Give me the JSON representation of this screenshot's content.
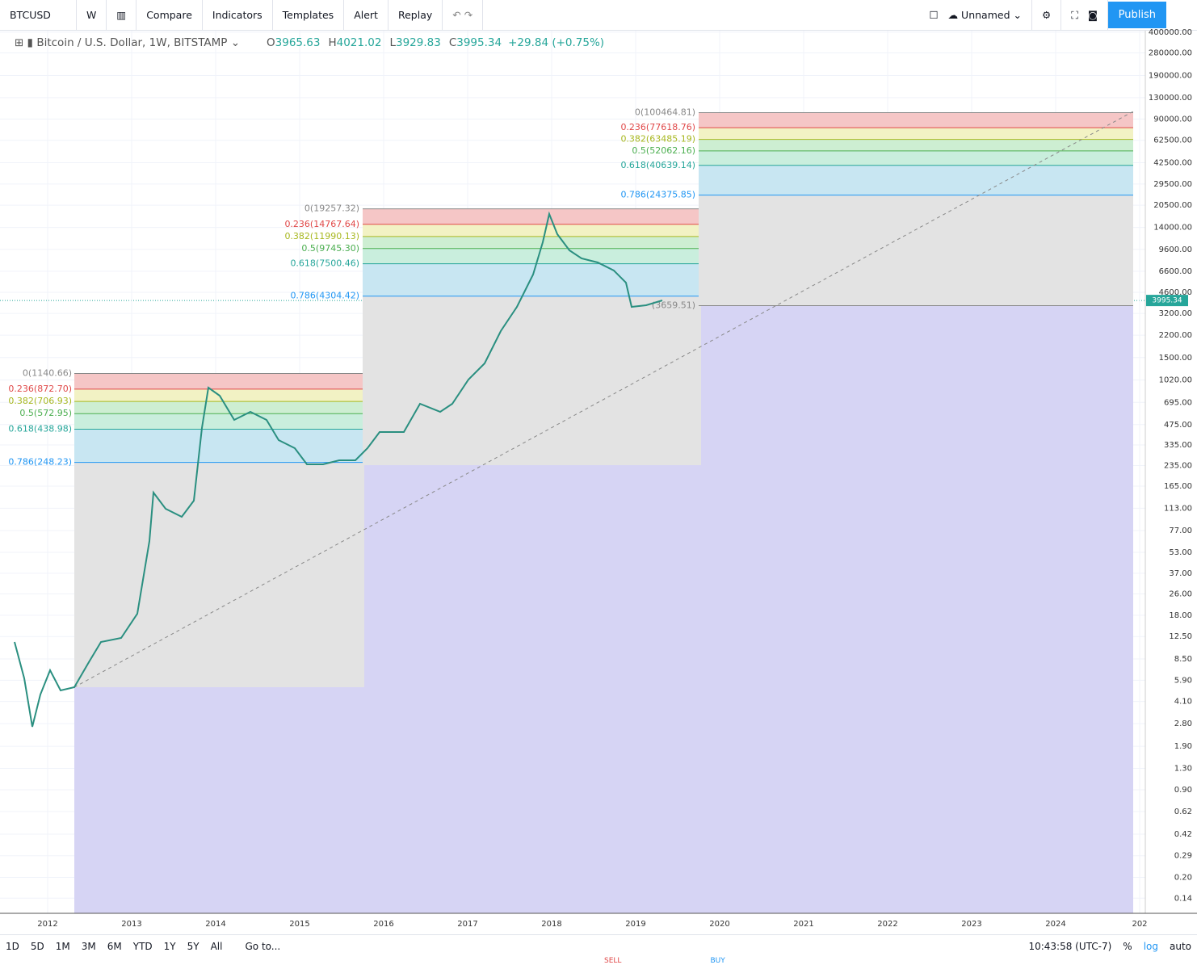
{
  "toolbar": {
    "symbol": "BTCUSD",
    "interval": "W",
    "items": [
      "Compare",
      "Indicators",
      "Templates",
      "Alert",
      "Replay"
    ],
    "layout_name": "Unnamed",
    "publish": "Publish"
  },
  "legend": {
    "title": "Bitcoin / U.S. Dollar, 1W, BITSTAMP",
    "ohlc": [
      {
        "key": "O",
        "value": "3965.63"
      },
      {
        "key": "H",
        "value": "4021.02"
      },
      {
        "key": "L",
        "value": "3929.83"
      },
      {
        "key": "C",
        "value": "3995.34"
      }
    ],
    "change": "+29.84 (+0.75%)"
  },
  "price_scale": {
    "log": true,
    "ylim": [
      0.108,
      410000
    ],
    "yticks": [
      {
        "value": 400000,
        "label": "400000.00"
      },
      {
        "value": 280000,
        "label": "280000.00"
      },
      {
        "value": 190000,
        "label": "190000.00"
      },
      {
        "value": 130000,
        "label": "130000.00"
      },
      {
        "value": 90000,
        "label": "90000.00"
      },
      {
        "value": 62500,
        "label": "62500.00"
      },
      {
        "value": 42500,
        "label": "42500.00"
      },
      {
        "value": 29500,
        "label": "29500.00"
      },
      {
        "value": 20500,
        "label": "20500.00"
      },
      {
        "value": 14000,
        "label": "14000.00"
      },
      {
        "value": 9600,
        "label": "9600.00"
      },
      {
        "value": 6600,
        "label": "6600.00"
      },
      {
        "value": 4600,
        "label": "4600.00"
      },
      {
        "value": 3200,
        "label": "3200.00"
      },
      {
        "value": 2200,
        "label": "2200.00"
      },
      {
        "value": 1500,
        "label": "1500.00"
      },
      {
        "value": 1020,
        "label": "1020.00"
      },
      {
        "value": 695,
        "label": "695.00"
      },
      {
        "value": 475,
        "label": "475.00"
      },
      {
        "value": 335,
        "label": "335.00"
      },
      {
        "value": 235,
        "label": "235.00"
      },
      {
        "value": 165,
        "label": "165.00"
      },
      {
        "value": 113,
        "label": "113.00"
      },
      {
        "value": 77,
        "label": "77.00"
      },
      {
        "value": 53,
        "label": "53.00"
      },
      {
        "value": 37,
        "label": "37.00"
      },
      {
        "value": 26,
        "label": "26.00"
      },
      {
        "value": 18,
        "label": "18.00"
      },
      {
        "value": 12.5,
        "label": "12.50"
      },
      {
        "value": 8.5,
        "label": "8.50"
      },
      {
        "value": 5.9,
        "label": "5.90"
      },
      {
        "value": 4.1,
        "label": "4.10"
      },
      {
        "value": 2.8,
        "label": "2.80"
      },
      {
        "value": 1.9,
        "label": "1.90"
      },
      {
        "value": 1.3,
        "label": "1.30"
      },
      {
        "value": 0.9,
        "label": "0.90"
      },
      {
        "value": 0.62,
        "label": "0.62"
      },
      {
        "value": 0.42,
        "label": "0.42"
      },
      {
        "value": 0.29,
        "label": "0.29"
      },
      {
        "value": 0.2,
        "label": "0.20"
      },
      {
        "value": 0.14,
        "label": "0.14"
      }
    ],
    "last_price": 3995.34
  },
  "time_scale": {
    "labels": [
      "2012",
      "2013",
      "2014",
      "2015",
      "2016",
      "2017",
      "2018",
      "2019",
      "2020",
      "2021",
      "2022",
      "2023",
      "2024",
      "202"
    ]
  },
  "fibs": [
    {
      "levels": [
        {
          "label": "0(1140.66)",
          "price": 1140.66
        },
        {
          "label": "0.236(872.70)",
          "price": 872.7
        },
        {
          "label": "0.382(706.93)",
          "price": 706.93
        },
        {
          "label": "0.5(572.95)",
          "price": 572.95
        },
        {
          "label": "0.618(438.98)",
          "price": 438.98
        },
        {
          "label": "0.786(248.23)",
          "price": 248.23
        }
      ]
    },
    {
      "levels": [
        {
          "label": "0(19257.32)",
          "price": 19257.32
        },
        {
          "label": "0.236(14767.64)",
          "price": 14767.64
        },
        {
          "label": "0.382(11990.13)",
          "price": 11990.13
        },
        {
          "label": "0.5(9745.30)",
          "price": 9745.3
        },
        {
          "label": "0.618(7500.46)",
          "price": 7500.46
        },
        {
          "label": "0.786(4304.42)",
          "price": 4304.42
        }
      ]
    },
    {
      "levels": [
        {
          "label": "0(100464.81)",
          "price": 100464.81
        },
        {
          "label": "0.236(77618.76)",
          "price": 77618.76
        },
        {
          "label": "0.382(63485.19)",
          "price": 63485.19
        },
        {
          "label": "0.5(52062.16)",
          "price": 52062.16
        },
        {
          "label": "0.618(40639.14)",
          "price": 40639.14
        },
        {
          "label": "0.786(24375.85)",
          "price": 24375.85
        },
        {
          "label": "(3659.51)",
          "price": 3659.51
        }
      ]
    }
  ],
  "bottom_bar": {
    "ranges": [
      "1D",
      "5D",
      "1M",
      "3M",
      "6M",
      "YTD",
      "1Y",
      "5Y",
      "All"
    ],
    "goto": "Go to...",
    "time": "10:43:58 (UTC-7)",
    "options": [
      "%",
      "log",
      "auto"
    ]
  },
  "trade": [
    "SELL",
    "BUY"
  ]
}
